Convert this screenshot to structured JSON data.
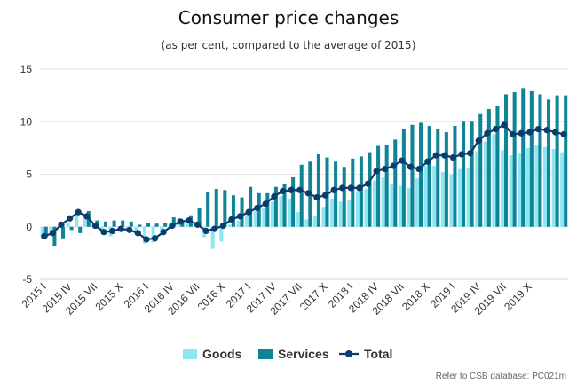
{
  "chart_data": {
    "type": "bar",
    "title": "Consumer price changes",
    "subtitle": "(as per cent, compared to the average of 2015)",
    "xlabel": "",
    "ylabel": "",
    "ylim": [
      -5,
      15
    ],
    "yticks": [
      -5,
      0,
      5,
      10,
      15
    ],
    "grid": true,
    "legend_position": "bottom",
    "credit": "Refer to CSB database: PC021m",
    "colors": {
      "goods": "#8ee6f2",
      "services": "#0e8496",
      "total": "#0a3c6e"
    },
    "x_tick_labels": [
      "2015 I",
      "2015 IV",
      "2015 VII",
      "2015 X",
      "2016 I",
      "2016 IV",
      "2016 VII",
      "2016 X",
      "2017 I",
      "2017 IV",
      "2017 VII",
      "2017 X",
      "2018 I",
      "2018 IV",
      "2018 VII",
      "2018 X",
      "2019 I",
      "2019 IV",
      "2019 VII",
      "2019 X"
    ],
    "series": [
      {
        "name": "Goods",
        "type": "column",
        "values": [
          -1.0,
          -0.7,
          0.1,
          0.4,
          1.4,
          1.0,
          0.3,
          -0.5,
          -0.9,
          -0.4,
          -0.2,
          -0.7,
          -1.6,
          -1.5,
          -0.5,
          0.1,
          0.8,
          0.7,
          0.1,
          -1.0,
          -2.1,
          -1.4,
          0.2,
          0.6,
          1.1,
          1.5,
          1.8,
          2.4,
          2.9,
          2.7,
          1.4,
          0.7,
          1.0,
          1.9,
          2.7,
          2.4,
          2.5,
          3.4,
          3.6,
          4.4,
          4.7,
          4.1,
          3.9,
          3.7,
          4.6,
          5.8,
          5.8,
          5.2,
          5.0,
          5.5,
          5.6,
          7.2,
          8.1,
          8.8,
          7.3,
          6.8,
          7.0,
          7.5,
          7.8,
          7.6,
          7.4,
          7.1
        ]
      },
      {
        "name": "Services",
        "type": "column",
        "values": [
          -1.0,
          -1.8,
          -1.1,
          -0.3,
          -0.6,
          1.5,
          0.6,
          0.5,
          0.6,
          0.6,
          0.5,
          0.2,
          0.4,
          0.3,
          0.4,
          0.9,
          0.6,
          1.1,
          1.8,
          3.3,
          3.6,
          3.5,
          3.0,
          2.8,
          3.8,
          3.2,
          3.2,
          3.8,
          4.1,
          4.7,
          5.9,
          6.2,
          6.9,
          6.6,
          6.2,
          5.7,
          6.5,
          6.7,
          7.1,
          7.7,
          7.8,
          8.3,
          9.3,
          9.7,
          9.9,
          9.6,
          9.3,
          9.0,
          9.6,
          10.0,
          10.0,
          10.8,
          11.2,
          11.5,
          12.6,
          12.8,
          13.2,
          12.9,
          12.6,
          12.1,
          12.5,
          12.5
        ]
      },
      {
        "name": "Total",
        "type": "line",
        "values": [
          -0.9,
          -0.6,
          0.2,
          0.8,
          1.4,
          1.0,
          0.1,
          -0.5,
          -0.4,
          -0.2,
          -0.3,
          -0.6,
          -1.2,
          -1.1,
          -0.5,
          0.1,
          0.5,
          0.6,
          0.2,
          -0.4,
          -0.2,
          0.1,
          0.7,
          1.0,
          1.4,
          1.8,
          2.2,
          2.9,
          3.4,
          3.5,
          3.5,
          3.2,
          2.8,
          3.0,
          3.5,
          3.7,
          3.7,
          3.7,
          4.1,
          5.3,
          5.5,
          5.8,
          6.3,
          5.7,
          5.5,
          6.2,
          6.8,
          6.8,
          6.6,
          6.9,
          7.0,
          8.2,
          8.9,
          9.3,
          9.7,
          8.8,
          8.9,
          9.0,
          9.3,
          9.2,
          9.0,
          8.8
        ]
      }
    ]
  }
}
